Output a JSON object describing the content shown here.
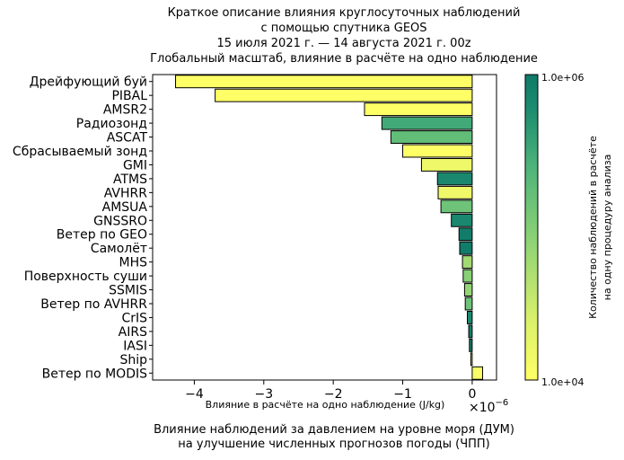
{
  "title_lines": [
    "Краткое описание влияния круглосуточных наблюдений",
    "с помощью спутника GEOS",
    "15 июля 2021 г. — 14 августа 2021 г. 00z",
    "Глобальный масштаб, влияние в расчёте на одно наблюдение"
  ],
  "caption_lines": [
    "Влияние наблюдений за давлением на уровне моря (ДУМ)",
    "на улучшение численных прогнозов погоды (ЧПП)"
  ],
  "chart_data": {
    "type": "bar",
    "orientation": "horizontal",
    "xlabel": "Влияние в расчёте на одно наблюдение (J/kg)",
    "x_offset_label": "×10",
    "x_offset_exponent": "−6",
    "xlim": [
      -4.6,
      0.35
    ],
    "xticks": [
      -4,
      -3,
      -2,
      -1,
      0
    ],
    "xtick_labels": [
      "−4",
      "−3",
      "−2",
      "−1",
      "0"
    ],
    "categories": [
      "Дрейфующий буй",
      "PIBAL",
      "AMSR2",
      "Радиозонд",
      "ASCAT",
      "Сбрасываемый зонд",
      "GMI",
      "ATMS",
      "AVHRR",
      "AMSUA",
      "GNSSRO",
      "Ветер по GEO",
      "Самолёт",
      "MHS",
      "Поверхность суши",
      "SSMIS",
      "Ветер по AVHRR",
      "CrIS",
      "AIRS",
      "IASI",
      "Ship",
      "Ветер по MODIS"
    ],
    "values": [
      -4.27,
      -3.7,
      -1.55,
      -1.3,
      -1.17,
      -1.0,
      -0.73,
      -0.5,
      -0.49,
      -0.45,
      -0.3,
      -0.19,
      -0.18,
      -0.14,
      -0.13,
      -0.11,
      -0.1,
      -0.07,
      -0.05,
      -0.04,
      -0.02,
      0.15
    ],
    "counts": [
      10000,
      10000,
      10000,
      200000,
      120000,
      10000,
      15000,
      500000,
      15000,
      100000,
      500000,
      900000,
      900000,
      50000,
      70000,
      60000,
      100000,
      500000,
      800000,
      900000,
      10000,
      12000
    ],
    "colorbar": {
      "label_lines": [
        "Количество наблюдений в расчёте",
        "на одну процедуру анализа"
      ],
      "min_label": "1.0e+04",
      "max_label": "1.0e+06",
      "range": [
        10000,
        1000000
      ],
      "scale": "log",
      "colors": [
        "#ffff66",
        "#d9f06b",
        "#8fd375",
        "#4db37a",
        "#1e8d70",
        "#0f7a68"
      ]
    }
  }
}
